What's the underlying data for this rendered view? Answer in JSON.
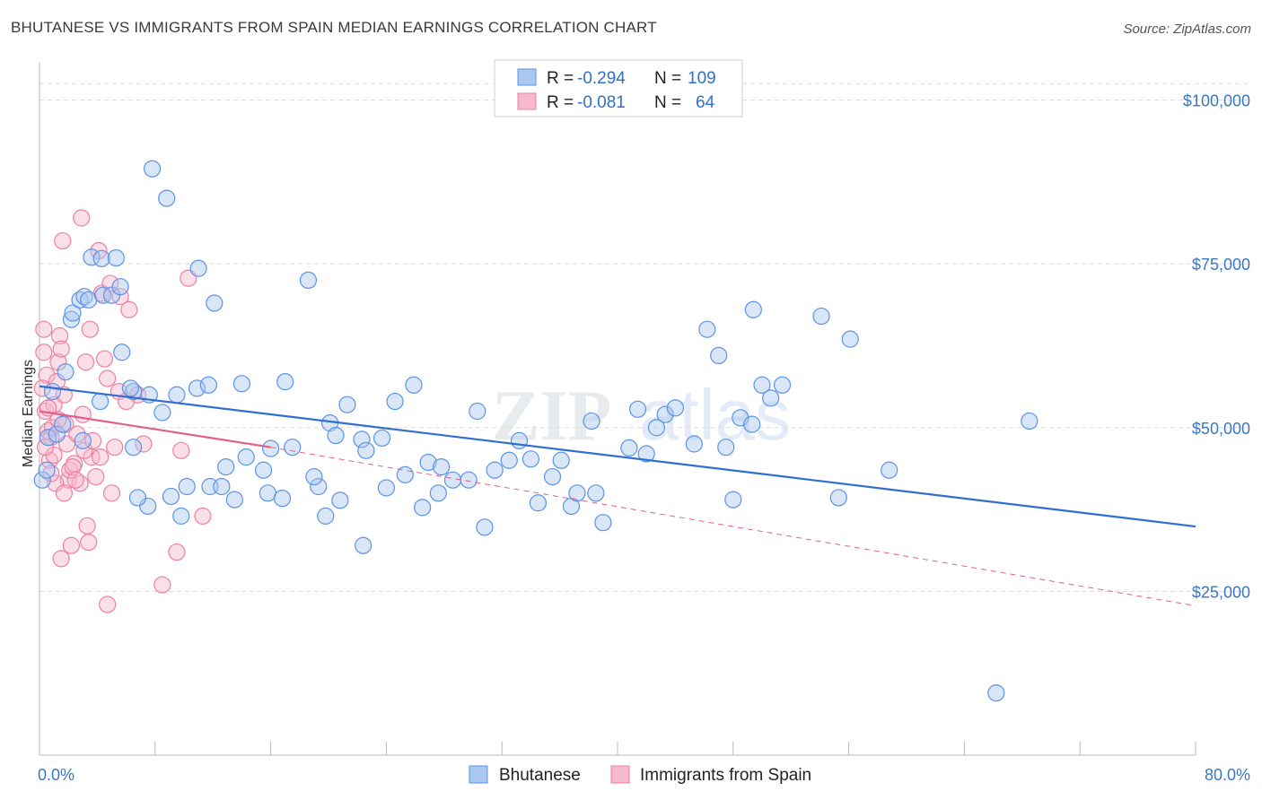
{
  "header": {
    "title": "BHUTANESE VS IMMIGRANTS FROM SPAIN MEDIAN EARNINGS CORRELATION CHART",
    "source": "Source: ZipAtlas.com"
  },
  "colors": {
    "blue": "#5b93e6",
    "blue_fill": "#aac8f0",
    "blue_line": "#2f6fd0",
    "pink": "#ee7fa3",
    "pink_fill": "#f6b8cc",
    "pink_line": "#e0608c",
    "tick_text": "#3a76c4",
    "grid": "#dcdcdc"
  },
  "legend_box": {
    "row1": {
      "r_label": "R =",
      "r_value": "-0.294",
      "n_label": "N =",
      "n_value": "109"
    },
    "row2": {
      "r_label": "R =",
      "r_value": "-0.081",
      "n_label": "N =",
      "n_value": "64"
    }
  },
  "bottom_legend": {
    "series1": "Bhutanese",
    "series2": "Immigrants from Spain"
  },
  "watermark": {
    "part1": "ZIP",
    "part2": "atlas"
  },
  "chart_data": {
    "type": "scatter",
    "title": "BHUTANESE VS IMMIGRANTS FROM SPAIN MEDIAN EARNINGS CORRELATION CHART",
    "xlabel": "",
    "ylabel": "Median Earnings",
    "xlim": [
      0,
      80
    ],
    "ylim": [
      0,
      105000
    ],
    "x_tick_labels": [
      "0.0%",
      "80.0%"
    ],
    "y_ticks": [
      25000,
      50000,
      75000,
      100000
    ],
    "y_tick_labels": [
      "$25,000",
      "$50,000",
      "$75,000",
      "$100,000"
    ],
    "grid": true,
    "legend_position": "top-center",
    "series": [
      {
        "name": "Bhutanese",
        "r": -0.294,
        "n": 109,
        "trend": {
          "x": [
            0,
            80
          ],
          "y": [
            56300,
            34900
          ],
          "style": "solid"
        },
        "points": [
          [
            0.2,
            42000
          ],
          [
            0.6,
            48500
          ],
          [
            1.2,
            49000
          ],
          [
            0.9,
            55500
          ],
          [
            1.8,
            58500
          ],
          [
            2.2,
            66500
          ],
          [
            2.3,
            67500
          ],
          [
            2.8,
            69500
          ],
          [
            3.1,
            70000
          ],
          [
            3.4,
            69500
          ],
          [
            3.6,
            76000
          ],
          [
            4.3,
            75800
          ],
          [
            5.3,
            75900
          ],
          [
            4.4,
            70200
          ],
          [
            5.0,
            70200
          ],
          [
            5.6,
            71500
          ],
          [
            5.7,
            61500
          ],
          [
            4.2,
            54000
          ],
          [
            6.5,
            55500
          ],
          [
            6.3,
            56000
          ],
          [
            6.5,
            47000
          ],
          [
            7.6,
            55000
          ],
          [
            7.8,
            89500
          ],
          [
            8.8,
            85000
          ],
          [
            8.5,
            52300
          ],
          [
            9.5,
            55000
          ],
          [
            10.2,
            41000
          ],
          [
            11.0,
            74300
          ],
          [
            10.9,
            56000
          ],
          [
            11.7,
            56500
          ],
          [
            12.1,
            69000
          ],
          [
            11.8,
            41000
          ],
          [
            12.6,
            41000
          ],
          [
            14.0,
            56700
          ],
          [
            14.3,
            45500
          ],
          [
            15.5,
            43500
          ],
          [
            15.8,
            40000
          ],
          [
            17.0,
            57000
          ],
          [
            17.5,
            47000
          ],
          [
            18.6,
            72500
          ],
          [
            19.8,
            36500
          ],
          [
            19.3,
            41000
          ],
          [
            20.1,
            50700
          ],
          [
            20.5,
            48800
          ],
          [
            21.3,
            53500
          ],
          [
            22.3,
            48200
          ],
          [
            22.6,
            46500
          ],
          [
            23.7,
            48400
          ],
          [
            24.6,
            54000
          ],
          [
            25.3,
            42800
          ],
          [
            25.9,
            56500
          ],
          [
            26.5,
            37800
          ],
          [
            26.9,
            44700
          ],
          [
            27.8,
            44000
          ],
          [
            27.6,
            40000
          ],
          [
            28.6,
            42000
          ],
          [
            29.7,
            42000
          ],
          [
            30.3,
            52500
          ],
          [
            31.5,
            43500
          ],
          [
            32.5,
            45000
          ],
          [
            33.2,
            48000
          ],
          [
            34.0,
            45200
          ],
          [
            35.5,
            42500
          ],
          [
            36.1,
            45000
          ],
          [
            36.8,
            38000
          ],
          [
            37.2,
            40000
          ],
          [
            38.5,
            40000
          ],
          [
            39.0,
            35500
          ],
          [
            38.2,
            51000
          ],
          [
            40.8,
            46900
          ],
          [
            41.4,
            52800
          ],
          [
            42.0,
            46000
          ],
          [
            42.7,
            50000
          ],
          [
            43.3,
            52000
          ],
          [
            44.0,
            53000
          ],
          [
            45.3,
            47500
          ],
          [
            46.2,
            65000
          ],
          [
            47.0,
            61000
          ],
          [
            47.5,
            47000
          ],
          [
            48.0,
            39000
          ],
          [
            48.5,
            51500
          ],
          [
            49.3,
            50500
          ],
          [
            49.4,
            68000
          ],
          [
            50.0,
            56500
          ],
          [
            50.6,
            54500
          ],
          [
            51.4,
            56500
          ],
          [
            54.1,
            67000
          ],
          [
            55.3,
            39300
          ],
          [
            56.1,
            63500
          ],
          [
            58.8,
            43500
          ],
          [
            66.2,
            9500
          ],
          [
            68.5,
            51000
          ],
          [
            30.8,
            34800
          ],
          [
            22.4,
            32000
          ],
          [
            16.8,
            39200
          ],
          [
            13.5,
            39000
          ],
          [
            9.8,
            36500
          ],
          [
            9.1,
            39500
          ],
          [
            7.5,
            38000
          ],
          [
            6.8,
            39300
          ],
          [
            3.0,
            48000
          ],
          [
            1.6,
            50500
          ],
          [
            0.5,
            43500
          ],
          [
            19.0,
            42500
          ],
          [
            24.0,
            40800
          ],
          [
            20.8,
            38900
          ],
          [
            16.0,
            46800
          ],
          [
            12.9,
            44000
          ],
          [
            34.5,
            38500
          ]
        ]
      },
      {
        "name": "Immigrants from Spain",
        "r": -0.081,
        "n": 64,
        "trend": {
          "x": [
            0,
            16
          ],
          "y": [
            52500,
            47000
          ],
          "style": "solid",
          "dashed_extension": {
            "x": [
              16,
              80
            ],
            "y": [
              47000,
              22800
            ]
          }
        },
        "points": [
          [
            0.3,
            65000
          ],
          [
            0.5,
            58000
          ],
          [
            0.4,
            52500
          ],
          [
            0.6,
            49500
          ],
          [
            0.7,
            45000
          ],
          [
            0.8,
            48500
          ],
          [
            1.0,
            53500
          ],
          [
            1.2,
            57000
          ],
          [
            1.3,
            60000
          ],
          [
            1.4,
            64000
          ],
          [
            1.5,
            62000
          ],
          [
            1.6,
            78500
          ],
          [
            1.7,
            55000
          ],
          [
            1.8,
            50500
          ],
          [
            1.9,
            47500
          ],
          [
            2.0,
            42000
          ],
          [
            2.1,
            43500
          ],
          [
            2.2,
            32000
          ],
          [
            2.4,
            44500
          ],
          [
            2.6,
            49000
          ],
          [
            2.8,
            41500
          ],
          [
            3.0,
            52000
          ],
          [
            3.2,
            60000
          ],
          [
            3.3,
            35000
          ],
          [
            3.4,
            32500
          ],
          [
            3.5,
            65000
          ],
          [
            3.6,
            45500
          ],
          [
            3.9,
            42500
          ],
          [
            4.1,
            77000
          ],
          [
            4.3,
            70500
          ],
          [
            4.5,
            60500
          ],
          [
            4.7,
            57500
          ],
          [
            4.9,
            72000
          ],
          [
            5.2,
            47000
          ],
          [
            5.5,
            55500
          ],
          [
            5.6,
            70000
          ],
          [
            6.2,
            68000
          ],
          [
            6.8,
            55000
          ],
          [
            7.2,
            47500
          ],
          [
            9.5,
            31000
          ],
          [
            9.8,
            46500
          ],
          [
            10.3,
            72800
          ],
          [
            11.3,
            36500
          ],
          [
            8.5,
            26000
          ],
          [
            4.7,
            23000
          ],
          [
            2.9,
            82000
          ],
          [
            1.1,
            41500
          ],
          [
            1.5,
            30000
          ],
          [
            0.9,
            50000
          ],
          [
            0.2,
            56000
          ],
          [
            0.3,
            61500
          ],
          [
            0.6,
            53000
          ],
          [
            1.0,
            45800
          ],
          [
            1.3,
            51200
          ],
          [
            1.7,
            40000
          ],
          [
            2.3,
            44000
          ],
          [
            2.5,
            42000
          ],
          [
            3.1,
            46500
          ],
          [
            3.7,
            48000
          ],
          [
            4.2,
            45500
          ],
          [
            5.0,
            40000
          ],
          [
            0.4,
            47000
          ],
          [
            0.8,
            43000
          ],
          [
            6.0,
            54000
          ]
        ]
      }
    ]
  }
}
